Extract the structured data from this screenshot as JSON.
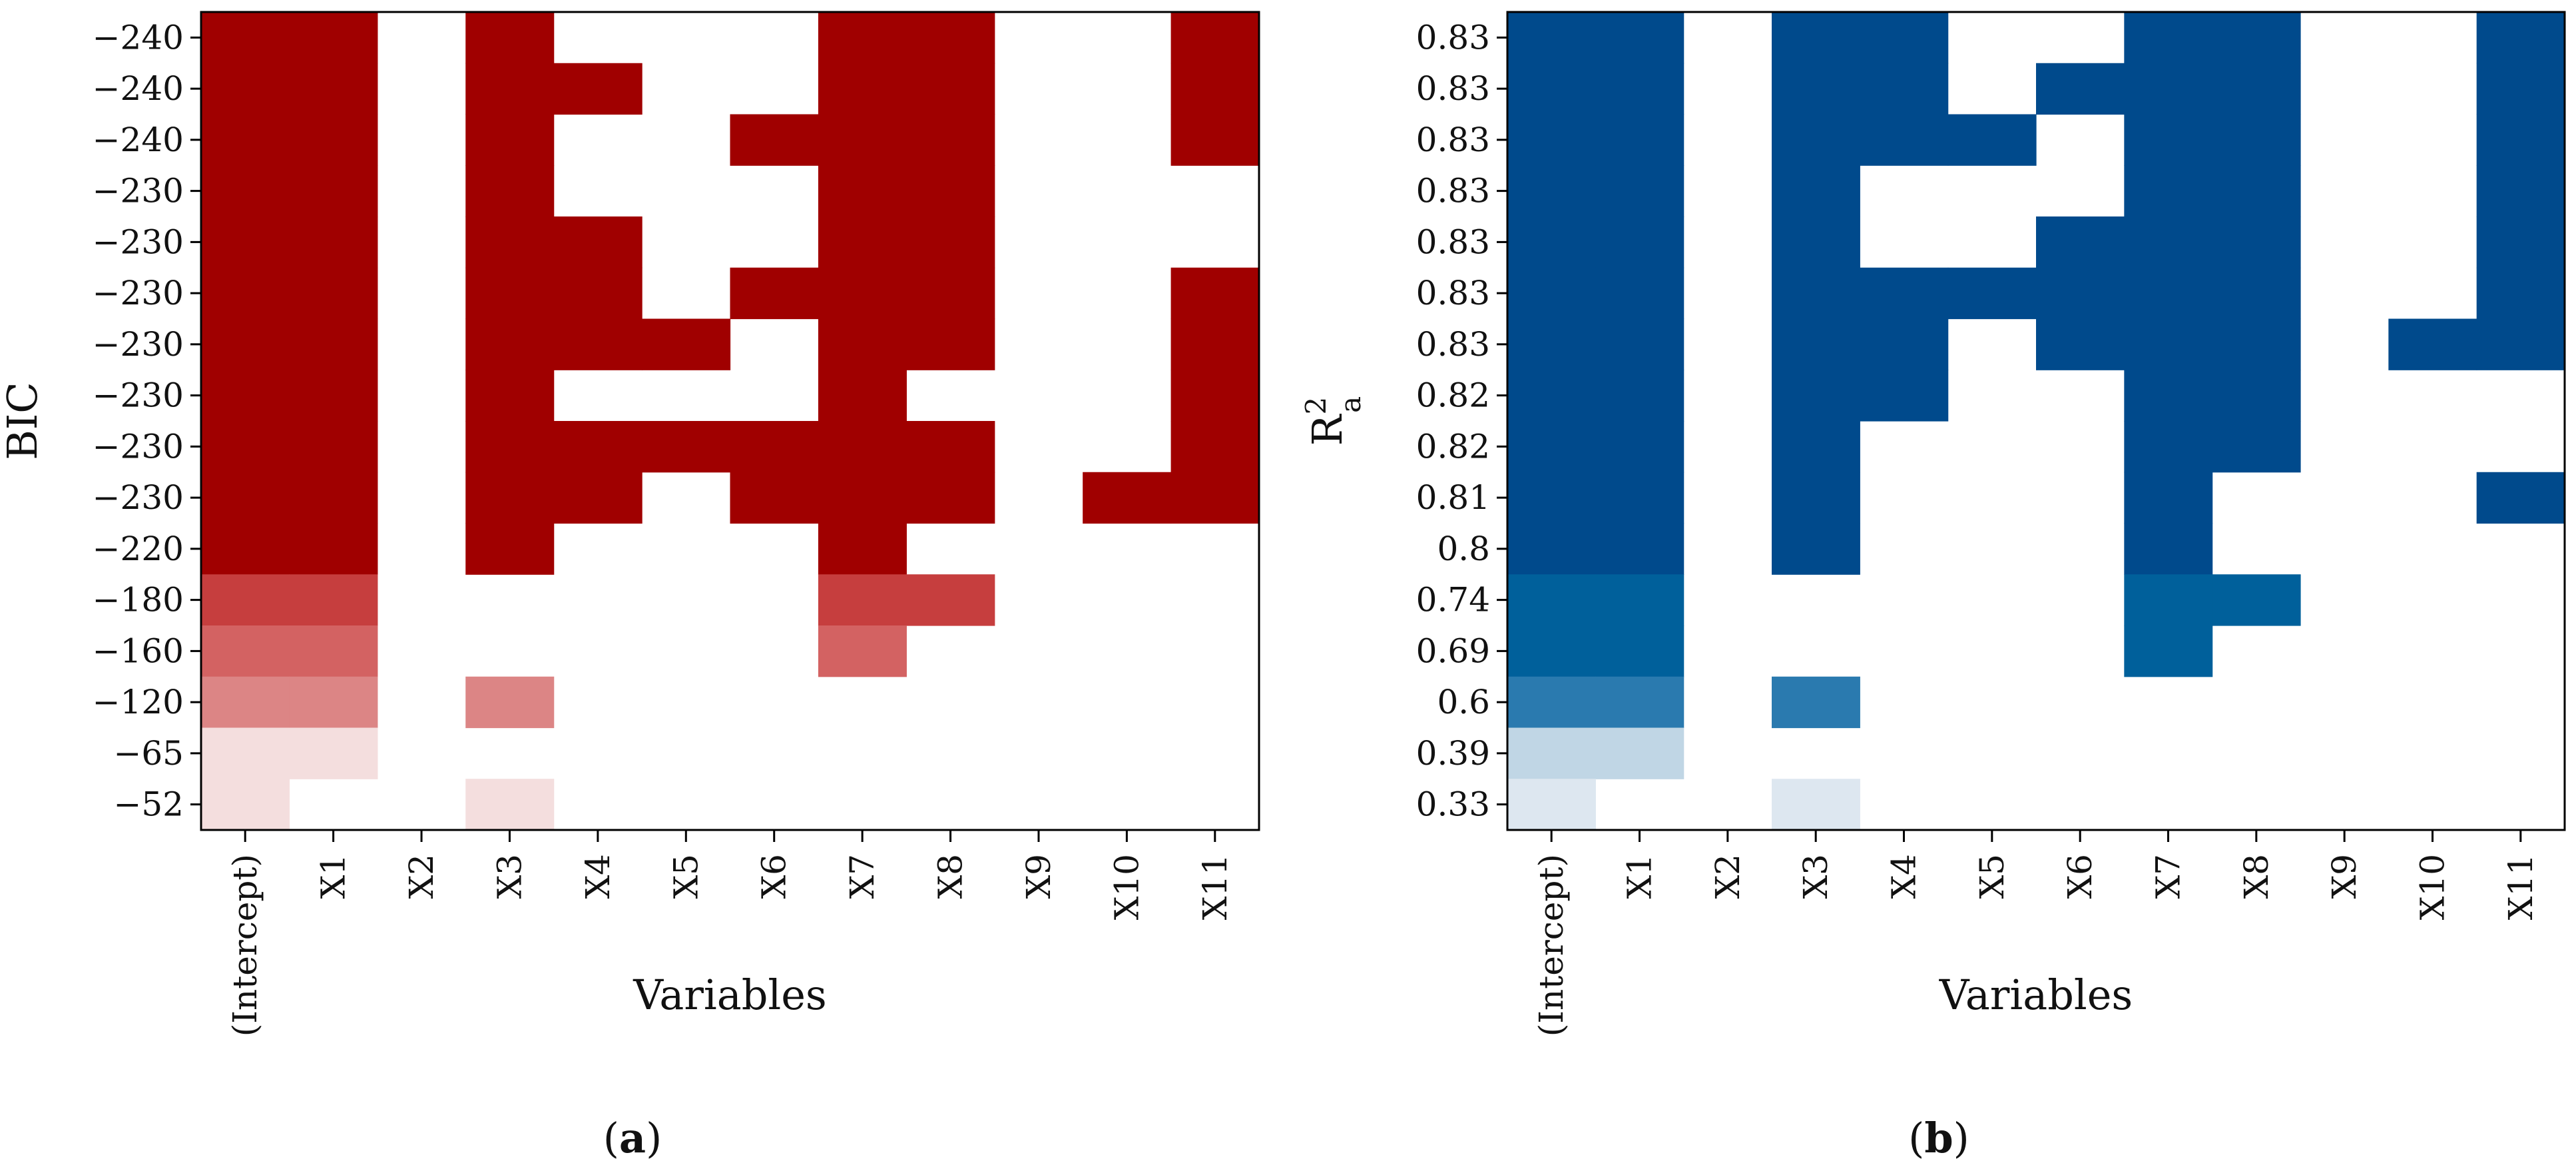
{
  "chart_data": [
    {
      "type": "heatmap",
      "panel_label": "(a)",
      "panel_letter": "a",
      "ylabel": "BIC",
      "xlabel": "Variables",
      "categories": [
        "(Intercept)",
        "X1",
        "X2",
        "X3",
        "X4",
        "X5",
        "X6",
        "X7",
        "X8",
        "X9",
        "X10",
        "X11"
      ],
      "row_labels": [
        "−240",
        "−240",
        "−240",
        "−230",
        "−230",
        "−230",
        "−230",
        "−230",
        "−230",
        "−230",
        "−220",
        "−180",
        "−160",
        "−120",
        "−65",
        "−52"
      ],
      "row_values": [
        -240,
        -240,
        -240,
        -230,
        -230,
        -230,
        -230,
        -230,
        -230,
        -230,
        -220,
        -180,
        -160,
        -120,
        -65,
        -52
      ],
      "color_scale": [
        "#f4dede",
        "#dc8585",
        "#d36262",
        "#c63e3e",
        "#a00000"
      ],
      "row_color_level": [
        4,
        4,
        4,
        4,
        4,
        4,
        4,
        4,
        4,
        4,
        4,
        3,
        2,
        1,
        0,
        0
      ],
      "inclusion": [
        [
          1,
          1,
          0,
          1,
          0,
          0,
          0,
          1,
          1,
          0,
          0,
          1
        ],
        [
          1,
          1,
          0,
          1,
          1,
          0,
          0,
          1,
          1,
          0,
          0,
          1
        ],
        [
          1,
          1,
          0,
          1,
          0,
          0,
          1,
          1,
          1,
          0,
          0,
          1
        ],
        [
          1,
          1,
          0,
          1,
          0,
          0,
          0,
          1,
          1,
          0,
          0,
          0
        ],
        [
          1,
          1,
          0,
          1,
          1,
          0,
          0,
          1,
          1,
          0,
          0,
          0
        ],
        [
          1,
          1,
          0,
          1,
          1,
          0,
          1,
          1,
          1,
          0,
          0,
          1
        ],
        [
          1,
          1,
          0,
          1,
          1,
          1,
          0,
          1,
          1,
          0,
          0,
          1
        ],
        [
          1,
          1,
          0,
          1,
          0,
          0,
          0,
          1,
          0,
          0,
          0,
          1
        ],
        [
          1,
          1,
          0,
          1,
          1,
          1,
          1,
          1,
          1,
          0,
          0,
          1
        ],
        [
          1,
          1,
          0,
          1,
          1,
          0,
          1,
          1,
          1,
          0,
          1,
          1
        ],
        [
          1,
          1,
          0,
          1,
          0,
          0,
          0,
          1,
          0,
          0,
          0,
          0
        ],
        [
          1,
          1,
          0,
          0,
          0,
          0,
          0,
          1,
          1,
          0,
          0,
          0
        ],
        [
          1,
          1,
          0,
          0,
          0,
          0,
          0,
          1,
          0,
          0,
          0,
          0
        ],
        [
          1,
          1,
          0,
          1,
          0,
          0,
          0,
          0,
          0,
          0,
          0,
          0
        ],
        [
          1,
          1,
          0,
          0,
          0,
          0,
          0,
          0,
          0,
          0,
          0,
          0
        ],
        [
          1,
          0,
          0,
          1,
          0,
          0,
          0,
          0,
          0,
          0,
          0,
          0
        ]
      ]
    },
    {
      "type": "heatmap",
      "panel_label": "(b)",
      "panel_letter": "b",
      "ylabel": "R",
      "ylabel_superscript": "2",
      "ylabel_subscript": "a",
      "xlabel": "Variables",
      "categories": [
        "(Intercept)",
        "X1",
        "X2",
        "X3",
        "X4",
        "X5",
        "X6",
        "X7",
        "X8",
        "X9",
        "X10",
        "X11"
      ],
      "row_labels": [
        "0.83",
        "0.83",
        "0.83",
        "0.83",
        "0.83",
        "0.83",
        "0.83",
        "0.82",
        "0.82",
        "0.81",
        "0.8",
        "0.74",
        "0.69",
        "0.6",
        "0.39",
        "0.33"
      ],
      "row_values": [
        0.83,
        0.83,
        0.83,
        0.83,
        0.83,
        0.83,
        0.83,
        0.82,
        0.82,
        0.81,
        0.8,
        0.74,
        0.69,
        0.6,
        0.39,
        0.33
      ],
      "color_scale": [
        "#dde7f0",
        "#c0d6e5",
        "#2a7aaf",
        "#00609b",
        "#004a8c"
      ],
      "row_color_level": [
        4,
        4,
        4,
        4,
        4,
        4,
        4,
        4,
        4,
        4,
        4,
        3,
        3,
        2,
        1,
        0
      ],
      "inclusion": [
        [
          1,
          1,
          0,
          1,
          1,
          0,
          0,
          1,
          1,
          0,
          0,
          1
        ],
        [
          1,
          1,
          0,
          1,
          1,
          0,
          1,
          1,
          1,
          0,
          0,
          1
        ],
        [
          1,
          1,
          0,
          1,
          1,
          1,
          0,
          1,
          1,
          0,
          0,
          1
        ],
        [
          1,
          1,
          0,
          1,
          0,
          0,
          0,
          1,
          1,
          0,
          0,
          1
        ],
        [
          1,
          1,
          0,
          1,
          0,
          0,
          1,
          1,
          1,
          0,
          0,
          1
        ],
        [
          1,
          1,
          0,
          1,
          1,
          1,
          1,
          1,
          1,
          0,
          0,
          1
        ],
        [
          1,
          1,
          0,
          1,
          1,
          0,
          1,
          1,
          1,
          0,
          1,
          1
        ],
        [
          1,
          1,
          0,
          1,
          1,
          0,
          0,
          1,
          1,
          0,
          0,
          0
        ],
        [
          1,
          1,
          0,
          1,
          0,
          0,
          0,
          1,
          1,
          0,
          0,
          0
        ],
        [
          1,
          1,
          0,
          1,
          0,
          0,
          0,
          1,
          0,
          0,
          0,
          1
        ],
        [
          1,
          1,
          0,
          1,
          0,
          0,
          0,
          1,
          0,
          0,
          0,
          0
        ],
        [
          1,
          1,
          0,
          0,
          0,
          0,
          0,
          1,
          1,
          0,
          0,
          0
        ],
        [
          1,
          1,
          0,
          0,
          0,
          0,
          0,
          1,
          0,
          0,
          0,
          0
        ],
        [
          1,
          1,
          0,
          1,
          0,
          0,
          0,
          0,
          0,
          0,
          0,
          0
        ],
        [
          1,
          1,
          0,
          0,
          0,
          0,
          0,
          0,
          0,
          0,
          0,
          0
        ],
        [
          1,
          0,
          0,
          1,
          0,
          0,
          0,
          0,
          0,
          0,
          0,
          0
        ]
      ]
    }
  ]
}
